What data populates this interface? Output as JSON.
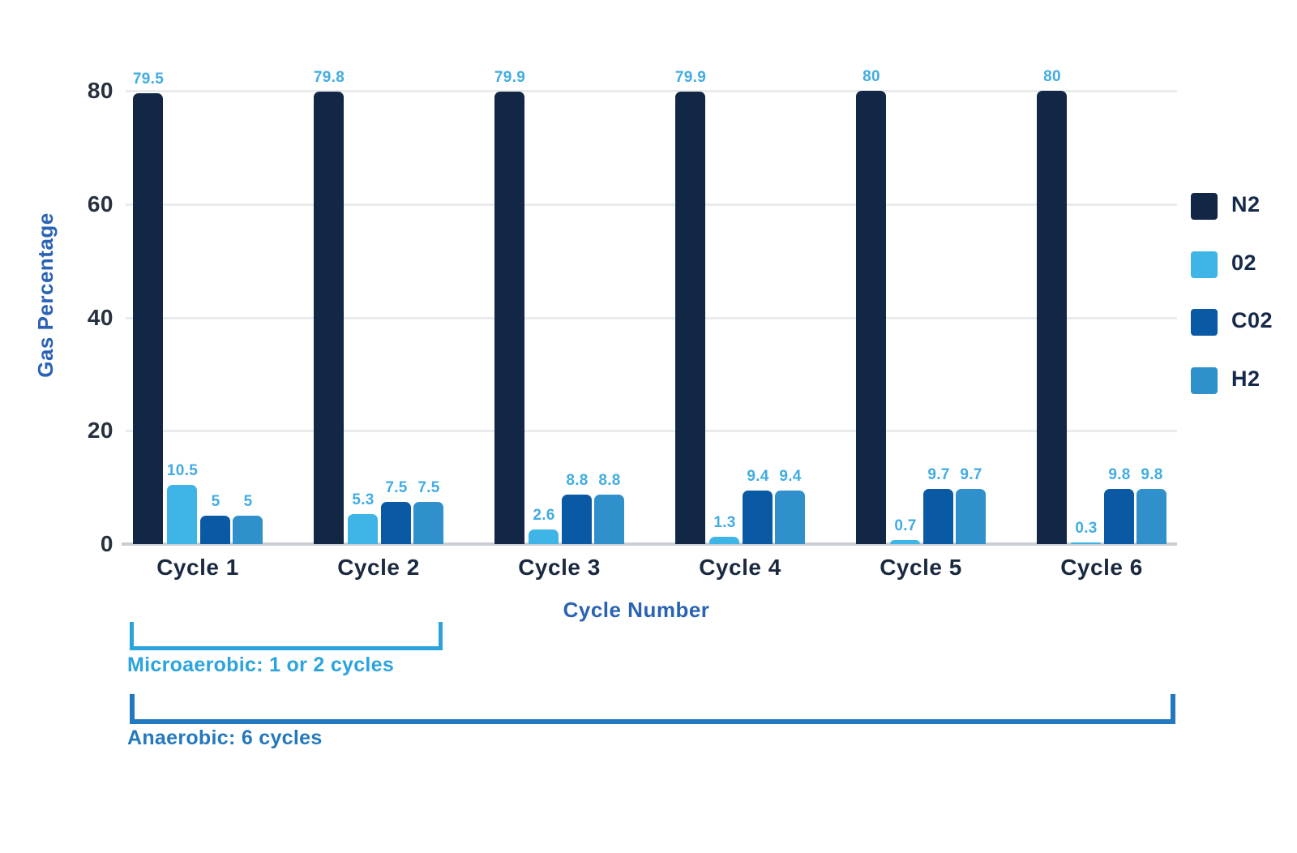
{
  "chart_data": {
    "type": "bar",
    "title": "",
    "xlabel": "Cycle Number",
    "ylabel": "Gas Percentage",
    "ylim": [
      0,
      80
    ],
    "yticks": [
      0,
      20,
      40,
      60,
      80
    ],
    "grid": true,
    "legend_position": "right",
    "categories": [
      "Cycle 1",
      "Cycle 2",
      "Cycle 3",
      "Cycle 4",
      "Cycle 5",
      "Cycle 6"
    ],
    "series": [
      {
        "key": "n2",
        "name": "N2",
        "color": "#122646",
        "values": [
          79.5,
          79.8,
          79.9,
          79.9,
          80,
          80
        ]
      },
      {
        "key": "o2",
        "name": "02",
        "color": "#3FB4E6",
        "values": [
          10.5,
          5.3,
          2.6,
          1.3,
          0.7,
          0.3
        ]
      },
      {
        "key": "co2",
        "name": "C02",
        "color": "#0A59A5",
        "values": [
          5,
          7.5,
          8.8,
          9.4,
          9.7,
          9.8
        ]
      },
      {
        "key": "h2",
        "name": "H2",
        "color": "#2F90CB",
        "values": [
          5,
          7.5,
          8.8,
          9.4,
          9.7,
          9.8
        ]
      }
    ],
    "value_label_color": "#41ACE2",
    "axis_title_color": "#2A63B3",
    "tick_label_color": "#27313F",
    "legend_text_color": "#15294A",
    "annotations": [
      {
        "key": "microaerobic",
        "label": "Microaerobic: 1 or 2 cycles",
        "covers_categories": [
          "Cycle 1",
          "Cycle 2"
        ],
        "color": "#2BA3DF"
      },
      {
        "key": "anaerobic",
        "label": "Anaerobic: 6 cycles",
        "covers_categories": [
          "Cycle 1",
          "Cycle 2",
          "Cycle 3",
          "Cycle 4",
          "Cycle 5",
          "Cycle 6"
        ],
        "color": "#2478BE"
      }
    ]
  }
}
